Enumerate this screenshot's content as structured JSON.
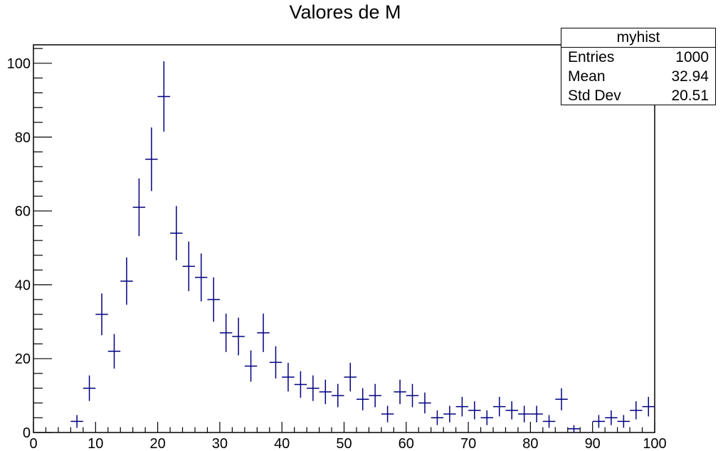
{
  "chart_data": {
    "type": "scatter",
    "title": "Valores de M",
    "xlabel": "",
    "ylabel": "",
    "xlim": [
      0,
      100
    ],
    "ylim": [
      0,
      105
    ],
    "x_ticks": [
      0,
      10,
      20,
      30,
      40,
      50,
      60,
      70,
      80,
      90,
      100
    ],
    "y_ticks": [
      0,
      20,
      40,
      60,
      80,
      100
    ],
    "bin_width": 2,
    "marker_color": "#000080",
    "points": [
      {
        "x": 7,
        "y": 3
      },
      {
        "x": 9,
        "y": 12
      },
      {
        "x": 11,
        "y": 32
      },
      {
        "x": 13,
        "y": 22
      },
      {
        "x": 15,
        "y": 41
      },
      {
        "x": 17,
        "y": 61
      },
      {
        "x": 19,
        "y": 74
      },
      {
        "x": 21,
        "y": 91
      },
      {
        "x": 23,
        "y": 54
      },
      {
        "x": 25,
        "y": 45
      },
      {
        "x": 27,
        "y": 42
      },
      {
        "x": 29,
        "y": 36
      },
      {
        "x": 31,
        "y": 27
      },
      {
        "x": 33,
        "y": 26
      },
      {
        "x": 35,
        "y": 18
      },
      {
        "x": 37,
        "y": 27
      },
      {
        "x": 39,
        "y": 19
      },
      {
        "x": 41,
        "y": 15
      },
      {
        "x": 43,
        "y": 13
      },
      {
        "x": 45,
        "y": 12
      },
      {
        "x": 47,
        "y": 11
      },
      {
        "x": 49,
        "y": 10
      },
      {
        "x": 51,
        "y": 15
      },
      {
        "x": 53,
        "y": 9
      },
      {
        "x": 55,
        "y": 10
      },
      {
        "x": 57,
        "y": 5
      },
      {
        "x": 59,
        "y": 11
      },
      {
        "x": 61,
        "y": 10
      },
      {
        "x": 63,
        "y": 8
      },
      {
        "x": 65,
        "y": 4
      },
      {
        "x": 67,
        "y": 5
      },
      {
        "x": 69,
        "y": 7
      },
      {
        "x": 71,
        "y": 6
      },
      {
        "x": 73,
        "y": 4
      },
      {
        "x": 75,
        "y": 7
      },
      {
        "x": 77,
        "y": 6
      },
      {
        "x": 79,
        "y": 5
      },
      {
        "x": 81,
        "y": 5
      },
      {
        "x": 83,
        "y": 3
      },
      {
        "x": 85,
        "y": 9
      },
      {
        "x": 87,
        "y": 1
      },
      {
        "x": 91,
        "y": 3
      },
      {
        "x": 93,
        "y": 4
      },
      {
        "x": 95,
        "y": 3
      },
      {
        "x": 97,
        "y": 6
      },
      {
        "x": 99,
        "y": 7
      }
    ]
  },
  "stats_box": {
    "name": "myhist",
    "entries_label": "Entries",
    "entries_value": "1000",
    "mean_label": "Mean",
    "mean_value": "32.94",
    "stddev_label": "Std Dev",
    "stddev_value": "20.51"
  }
}
